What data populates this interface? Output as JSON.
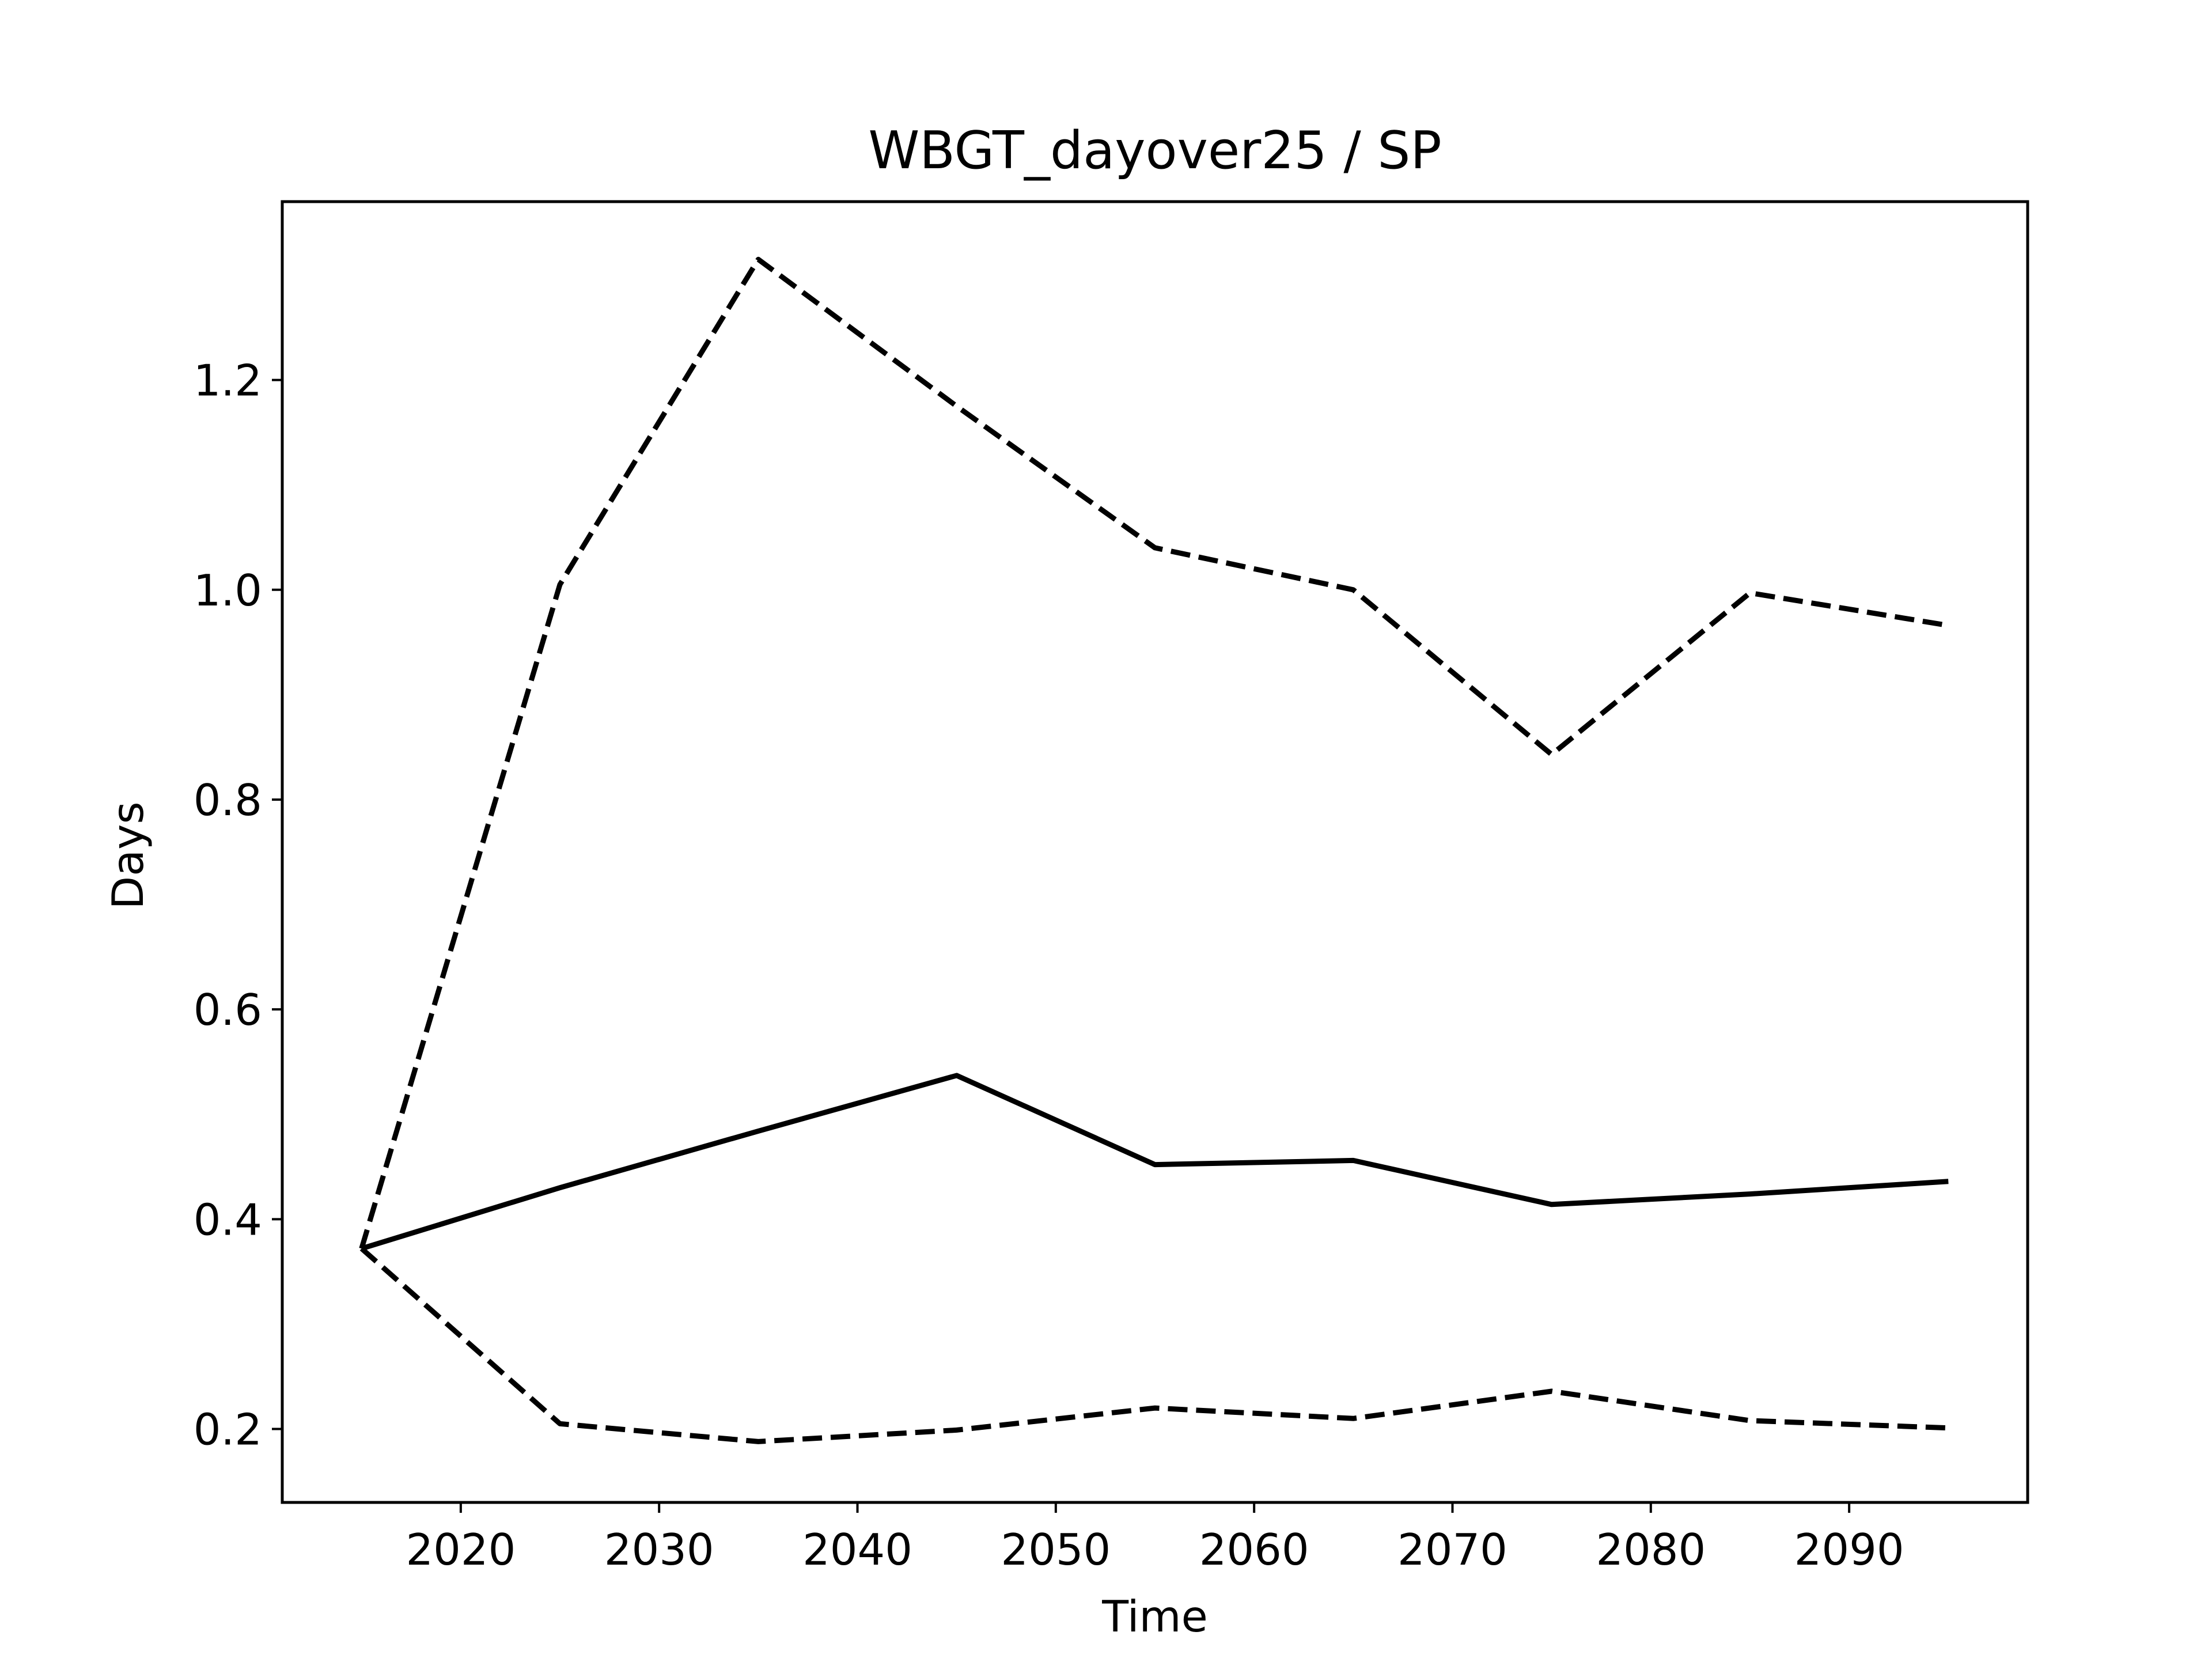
{
  "chart_data": {
    "type": "line",
    "title": "WBGT_dayover25 / SP",
    "xlabel": "Time",
    "ylabel": "Days",
    "x": [
      2015,
      2025,
      2035,
      2045,
      2055,
      2065,
      2075,
      2085,
      2095
    ],
    "xlim": [
      2011,
      2099
    ],
    "ylim": [
      0.13,
      1.37
    ],
    "xticks": [
      2020,
      2030,
      2040,
      2050,
      2060,
      2070,
      2080,
      2090
    ],
    "yticks": [
      0.2,
      0.4,
      0.6,
      0.8,
      1.0,
      1.2
    ],
    "xtick_labels": [
      "2020",
      "2030",
      "2040",
      "2050",
      "2060",
      "2070",
      "2080",
      "2090"
    ],
    "ytick_labels": [
      "0.2",
      "0.4",
      "0.6",
      "0.8",
      "1.0",
      "1.2"
    ],
    "grid": false,
    "legend": "none",
    "series": [
      {
        "style": "solid",
        "color": "#000000",
        "values": [
          0.372,
          0.43,
          0.484,
          0.537,
          0.452,
          0.456,
          0.414,
          0.424,
          0.436
        ]
      },
      {
        "style": "dashed",
        "color": "#000000",
        "values": [
          0.372,
          1.005,
          1.315,
          1.175,
          1.04,
          1.0,
          0.843,
          0.997,
          0.966
        ]
      },
      {
        "style": "dashed",
        "color": "#000000",
        "values": [
          0.372,
          0.205,
          0.188,
          0.199,
          0.22,
          0.21,
          0.236,
          0.208,
          0.201
        ]
      }
    ]
  }
}
